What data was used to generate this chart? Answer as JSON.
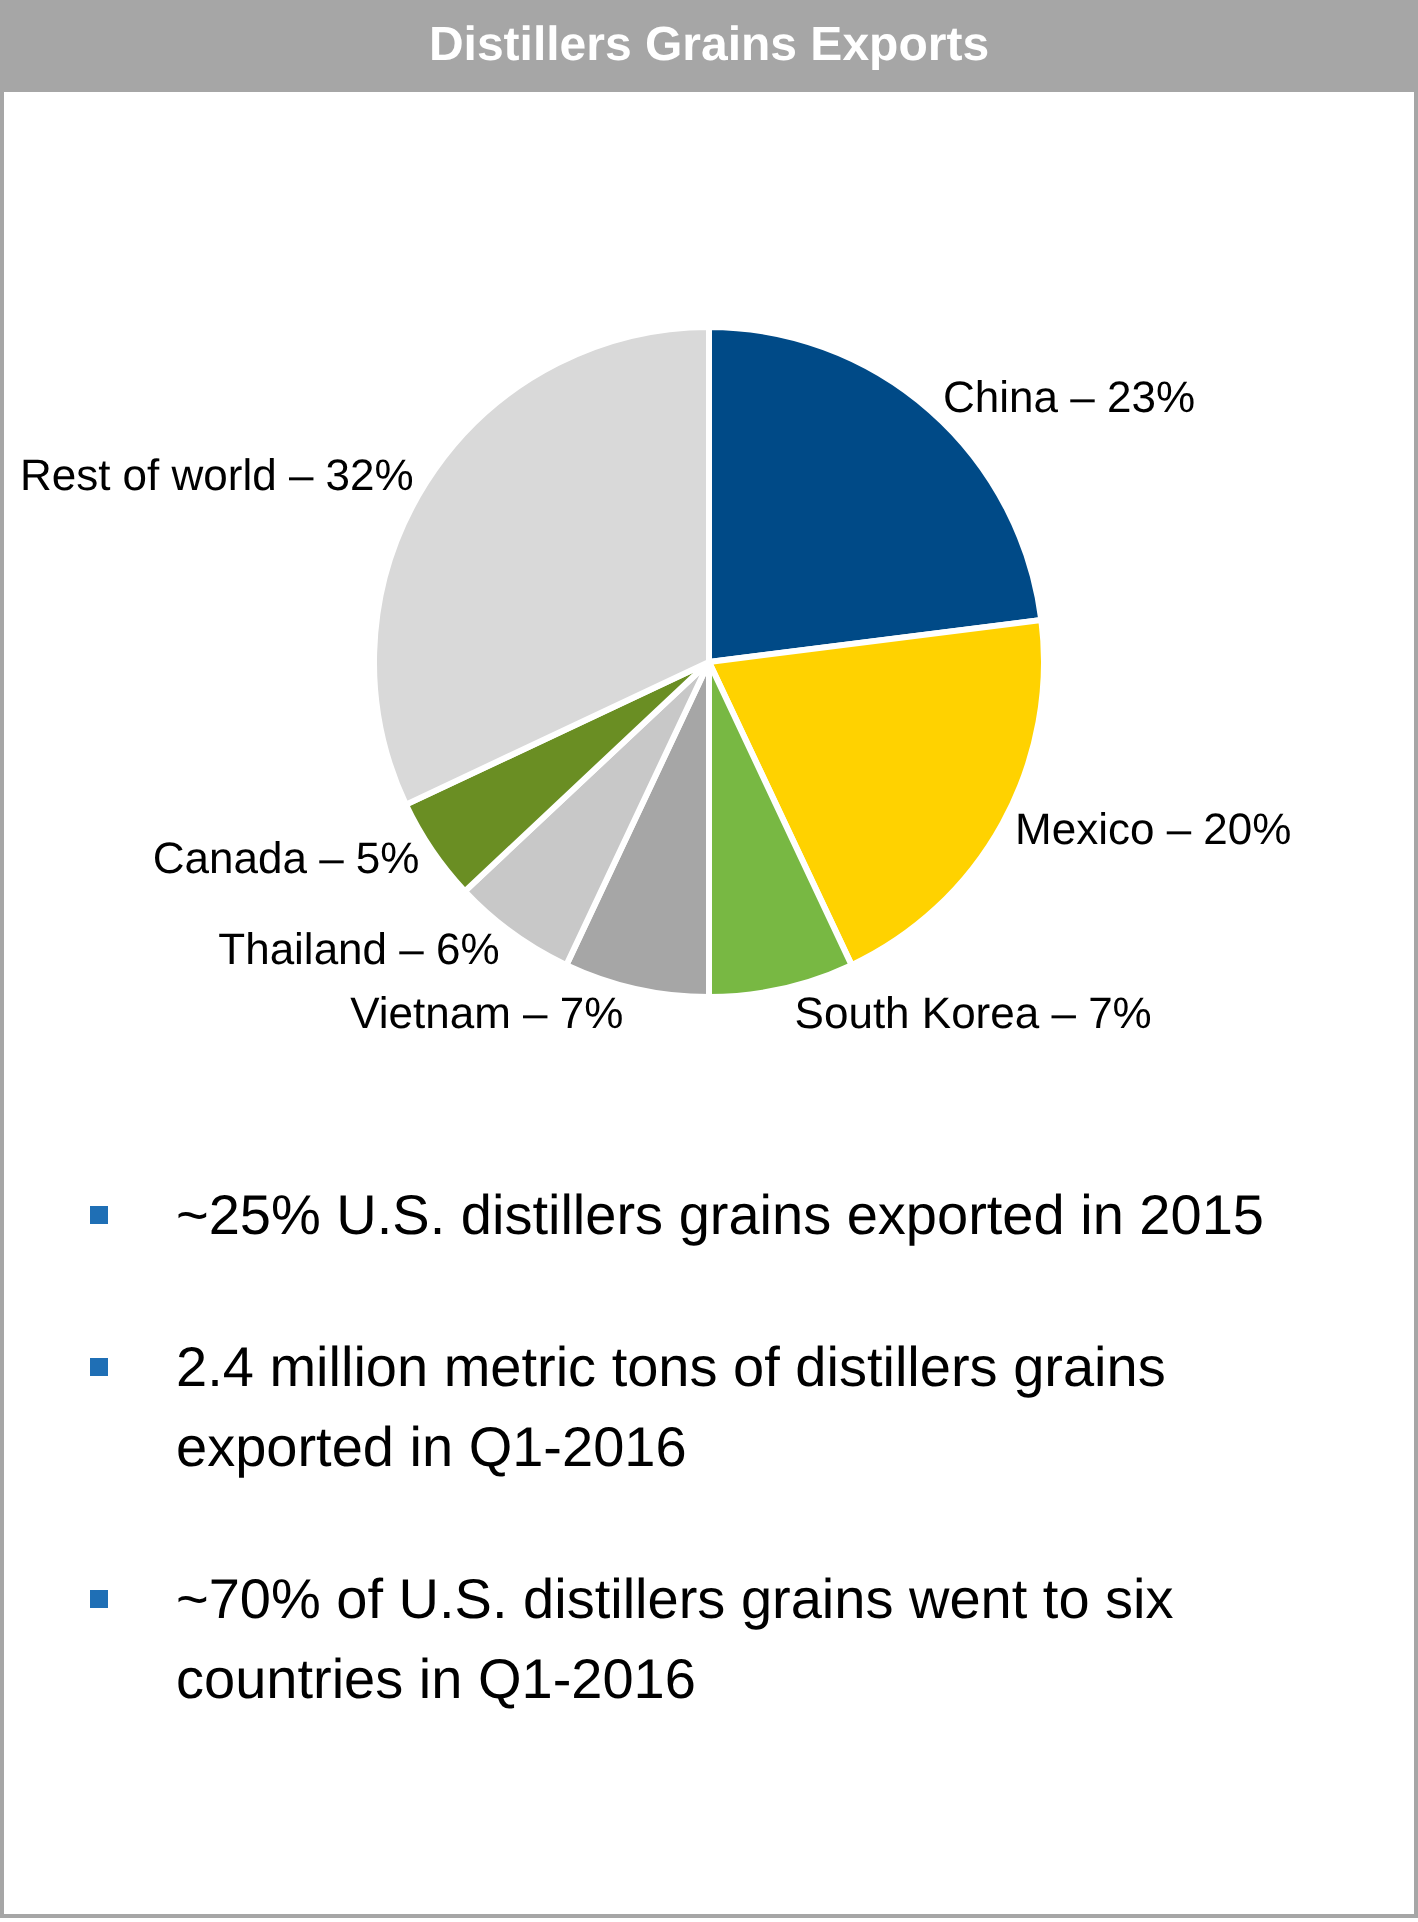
{
  "chart_data": {
    "type": "pie",
    "title": "Distillers Grains Exports",
    "categories": [
      "China",
      "Mexico",
      "South Korea",
      "Vietnam",
      "Thailand",
      "Canada",
      "Rest of world"
    ],
    "values": [
      23,
      20,
      7,
      7,
      6,
      5,
      32
    ],
    "colors": [
      "#004a87",
      "#ffd200",
      "#78b843",
      "#a6a6a6",
      "#c8c8c8",
      "#6a8e23",
      "#d9d9d9"
    ],
    "value_labels": [
      "23%",
      "20%",
      "7%",
      "7%",
      "6%",
      "5%",
      "32%"
    ],
    "annotations": [
      "~25% U.S. distillers grains exported in 2015",
      "2.4 million metric tons of distillers grains exported in Q1-2016",
      "~70% of U.S. distillers grains went to six countries in Q1-2016"
    ]
  }
}
